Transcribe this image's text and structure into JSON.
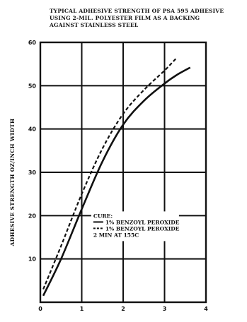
{
  "chart_data": {
    "type": "line",
    "title_lines": [
      "TYPICAL ADHESIVE STRENGTH OF PSA 595 ADHESIVE",
      "USING 2-MIL. POLYESTER FILM AS A BACKING",
      "AGAINST STAINLESS STEEL"
    ],
    "xlabel": "",
    "ylabel": "ADHESIVE STRENGTH OZ/INCH WIDTH",
    "xlim": [
      0,
      4
    ],
    "ylim": [
      0,
      60
    ],
    "x_ticks": [
      "0",
      "1",
      "2",
      "3",
      "4"
    ],
    "y_ticks": [
      "10",
      "20",
      "30",
      "40",
      "50",
      "60"
    ],
    "grid": true,
    "legend_position": "bottom-right",
    "series": [
      {
        "name": "1% BENZOYL PEROXIDE",
        "style": "solid",
        "color": "#111111",
        "x": [
          0.07,
          0.5,
          1.0,
          1.5,
          2.0,
          2.5,
          3.0,
          3.3,
          3.62
        ],
        "y": [
          1.5,
          10.0,
          21.5,
          32.5,
          41.0,
          46.5,
          50.5,
          52.5,
          54.2
        ]
      },
      {
        "name": "1% BENZOYL PEROXIDE",
        "style": "dashed",
        "color": "#111111",
        "x": [
          0.07,
          0.5,
          1.0,
          1.5,
          2.0,
          2.5,
          3.0,
          3.3
        ],
        "y": [
          3.0,
          13.0,
          25.0,
          35.5,
          43.5,
          49.0,
          53.5,
          56.5
        ]
      }
    ],
    "legend": {
      "header": "CURE:",
      "entries": [
        "1% BENZOYL PEROXIDE",
        "1% BENZOYL PEROXIDE"
      ],
      "footer": "2 MIN AT 155C"
    }
  }
}
